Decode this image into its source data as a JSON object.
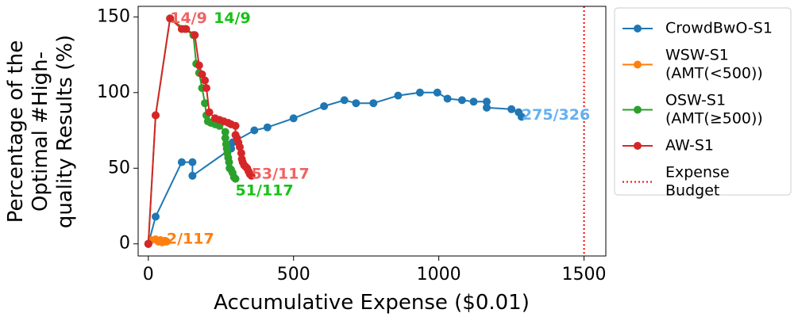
{
  "chart_data": {
    "type": "line",
    "title": "",
    "xlabel": "Accumulative Expense ($0.01)",
    "ylabel_lines": [
      "Percentage of the",
      "Optimal #High-",
      "quality Results (%)"
    ],
    "xlim": [
      -35,
      1575
    ],
    "ylim": [
      -8,
      157
    ],
    "xticks": [
      0,
      500,
      1000,
      1500
    ],
    "yticks": [
      0,
      50,
      100,
      150
    ],
    "grid": false,
    "legend_position": "outside-right",
    "series": [
      {
        "name": "CrowdBwO-S1",
        "legend_lines": [
          "CrowdBwO-S1"
        ],
        "color": "#1f77b4",
        "x": [
          0,
          25,
          115,
          152,
          152,
          285,
          290,
          365,
          410,
          500,
          605,
          675,
          715,
          775,
          860,
          935,
          995,
          1030,
          1080,
          1120,
          1165,
          1165,
          1250,
          1275,
          1285
        ],
        "y": [
          0,
          18,
          54,
          54,
          45,
          63,
          67,
          75,
          77,
          83,
          91,
          95,
          93,
          93,
          98,
          100,
          100,
          96,
          95,
          94,
          94,
          90,
          89,
          87,
          84
        ]
      },
      {
        "name": "WSW-S1",
        "legend_lines": [
          "WSW-S1",
          "(AMT(<500))"
        ],
        "color": "#ff7f0e",
        "x": [
          0,
          10,
          25,
          35,
          42,
          48,
          53,
          58,
          63
        ],
        "y": [
          0,
          2.5,
          3,
          1.5,
          2.5,
          1,
          1.5,
          2,
          1.5
        ]
      },
      {
        "name": "OSW-S1",
        "legend_lines": [
          "OSW-S1",
          "(AMT(≥500))"
        ],
        "color": "#2ca02c",
        "x": [
          0,
          25,
          75,
          125,
          155,
          165,
          175,
          185,
          195,
          200,
          205,
          215,
          230,
          245,
          265,
          265,
          268,
          270,
          272,
          275,
          278,
          280,
          285,
          290,
          295,
          300
        ],
        "y": [
          0,
          85,
          149,
          142,
          138,
          119,
          113,
          103,
          93,
          85,
          81,
          80,
          79,
          78,
          74,
          70,
          66,
          63,
          60,
          57,
          54,
          50,
          49,
          47,
          44,
          43
        ]
      },
      {
        "name": "AW-S1",
        "legend_lines": [
          "AW-S1"
        ],
        "color": "#d62728",
        "x": [
          0,
          25,
          75,
          115,
          130,
          160,
          175,
          185,
          195,
          200,
          210,
          230,
          245,
          260,
          275,
          285,
          300,
          300,
          305,
          310,
          315,
          320,
          322,
          325,
          330,
          335,
          340,
          345,
          350,
          355
        ],
        "y": [
          0,
          85,
          149,
          142,
          142,
          138,
          118,
          112,
          108,
          103,
          87,
          83,
          82,
          81,
          80,
          79,
          78,
          72,
          70,
          67,
          64,
          60,
          56,
          54,
          52,
          51,
          50,
          48,
          46,
          45
        ]
      }
    ],
    "vlines": [
      {
        "name": "Expense Budget",
        "legend_lines": [
          "Expense",
          "Budget"
        ],
        "x": 1500,
        "color": "#ff0000",
        "style": "dotted"
      }
    ],
    "annotations": [
      {
        "text": "14/9",
        "x": 75,
        "y": 149,
        "color": "#f06262"
      },
      {
        "text": "14/9",
        "x": 225,
        "y": 149,
        "color": "#16c216"
      },
      {
        "text": "53/117",
        "x": 355,
        "y": 46,
        "color": "#f06262"
      },
      {
        "text": "51/117",
        "x": 300,
        "y": 35,
        "color": "#16c216"
      },
      {
        "text": "2/117",
        "x": 63,
        "y": 3,
        "color": "#ff7f0e"
      },
      {
        "text": "275/326",
        "x": 1285,
        "y": 85,
        "color": "#64b0f2"
      }
    ]
  }
}
